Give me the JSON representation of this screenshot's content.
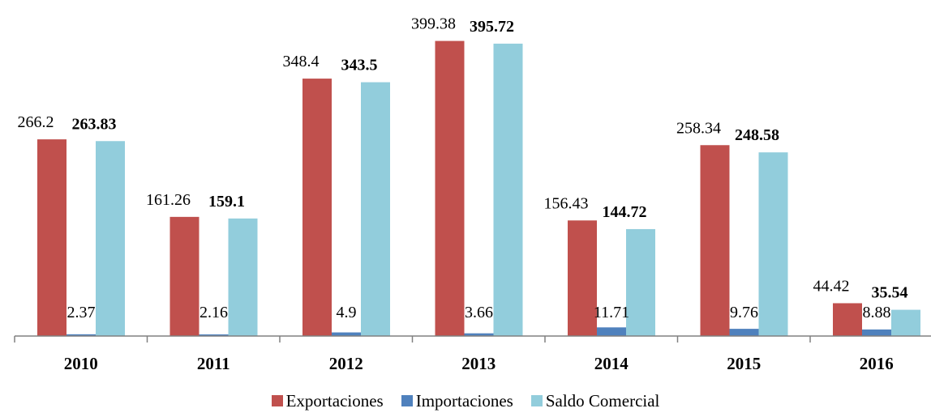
{
  "chart_data": {
    "type": "bar",
    "categories": [
      "2010",
      "2011",
      "2012",
      "2013",
      "2014",
      "2015",
      "2016"
    ],
    "series": [
      {
        "name": "Exportaciones",
        "color": "#c0504d",
        "values": [
          266.2,
          161.26,
          348.4,
          399.38,
          156.43,
          258.34,
          44.42
        ],
        "labels": [
          "266.2",
          "161.26",
          "348.4",
          "399.38",
          "156.43",
          "258.34",
          "44.42"
        ],
        "bold": false
      },
      {
        "name": "Importaciones",
        "color": "#4f81bd",
        "values": [
          2.37,
          2.16,
          4.9,
          3.66,
          11.71,
          9.76,
          8.88
        ],
        "labels": [
          "2.37",
          "2.16",
          "4.9",
          "3.66",
          "11.71",
          "9.76",
          "8.88"
        ],
        "bold": false
      },
      {
        "name": "Saldo Comercial",
        "color": "#92cddc",
        "values": [
          263.83,
          159.1,
          343.5,
          395.72,
          144.72,
          248.58,
          35.54
        ],
        "labels": [
          "263.83",
          "159.1",
          "343.5",
          "395.72",
          "144.72",
          "248.58",
          "35.54"
        ],
        "bold": true
      }
    ],
    "ylim": [
      0,
      400
    ],
    "grid": false,
    "legend_position": "bottom"
  }
}
